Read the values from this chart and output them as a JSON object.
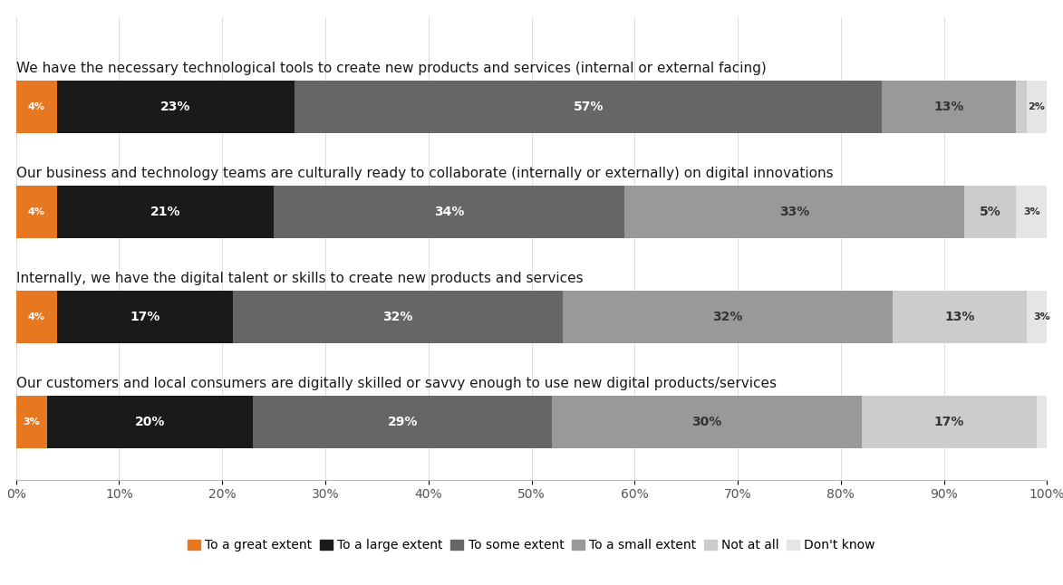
{
  "categories": [
    "We have the necessary technological tools to create new products and services (internal or external facing)",
    "Our business and technology teams are culturally ready to collaborate (internally or externally) on digital innovations",
    "Internally, we have the digital talent or skills to create new products and services",
    "Our customers and local consumers are digitally skilled or savvy enough to use new digital products/services"
  ],
  "series": {
    "To a great extent": [
      4,
      4,
      4,
      3
    ],
    "To a large extent": [
      23,
      21,
      17,
      20
    ],
    "To some extent": [
      57,
      34,
      32,
      29
    ],
    "To a small extent": [
      13,
      33,
      32,
      30
    ],
    "Not at all": [
      1,
      5,
      13,
      17
    ],
    "Don't know": [
      2,
      3,
      3,
      1
    ]
  },
  "colors": {
    "To a great extent": "#E87722",
    "To a large extent": "#1A1A1A",
    "To some extent": "#666666",
    "To a small extent": "#999999",
    "Not at all": "#CCCCCC",
    "Don't know": "#E5E5E5"
  },
  "legend_order": [
    "To a great extent",
    "To a large extent",
    "To some extent",
    "To a small extent",
    "Not at all",
    "Don't know"
  ],
  "background_color": "#FFFFFF",
  "bar_height": 0.5,
  "xlim": [
    0,
    100
  ],
  "xtick_values": [
    0,
    10,
    20,
    30,
    40,
    50,
    60,
    70,
    80,
    90,
    100
  ],
  "xtick_labels": [
    "0%",
    "10%",
    "20%",
    "30%",
    "40%",
    "50%",
    "60%",
    "70%",
    "80%",
    "90%",
    "100%"
  ],
  "label_fontsize": 10,
  "title_fontsize": 11,
  "legend_fontsize": 10,
  "tick_fontsize": 10
}
